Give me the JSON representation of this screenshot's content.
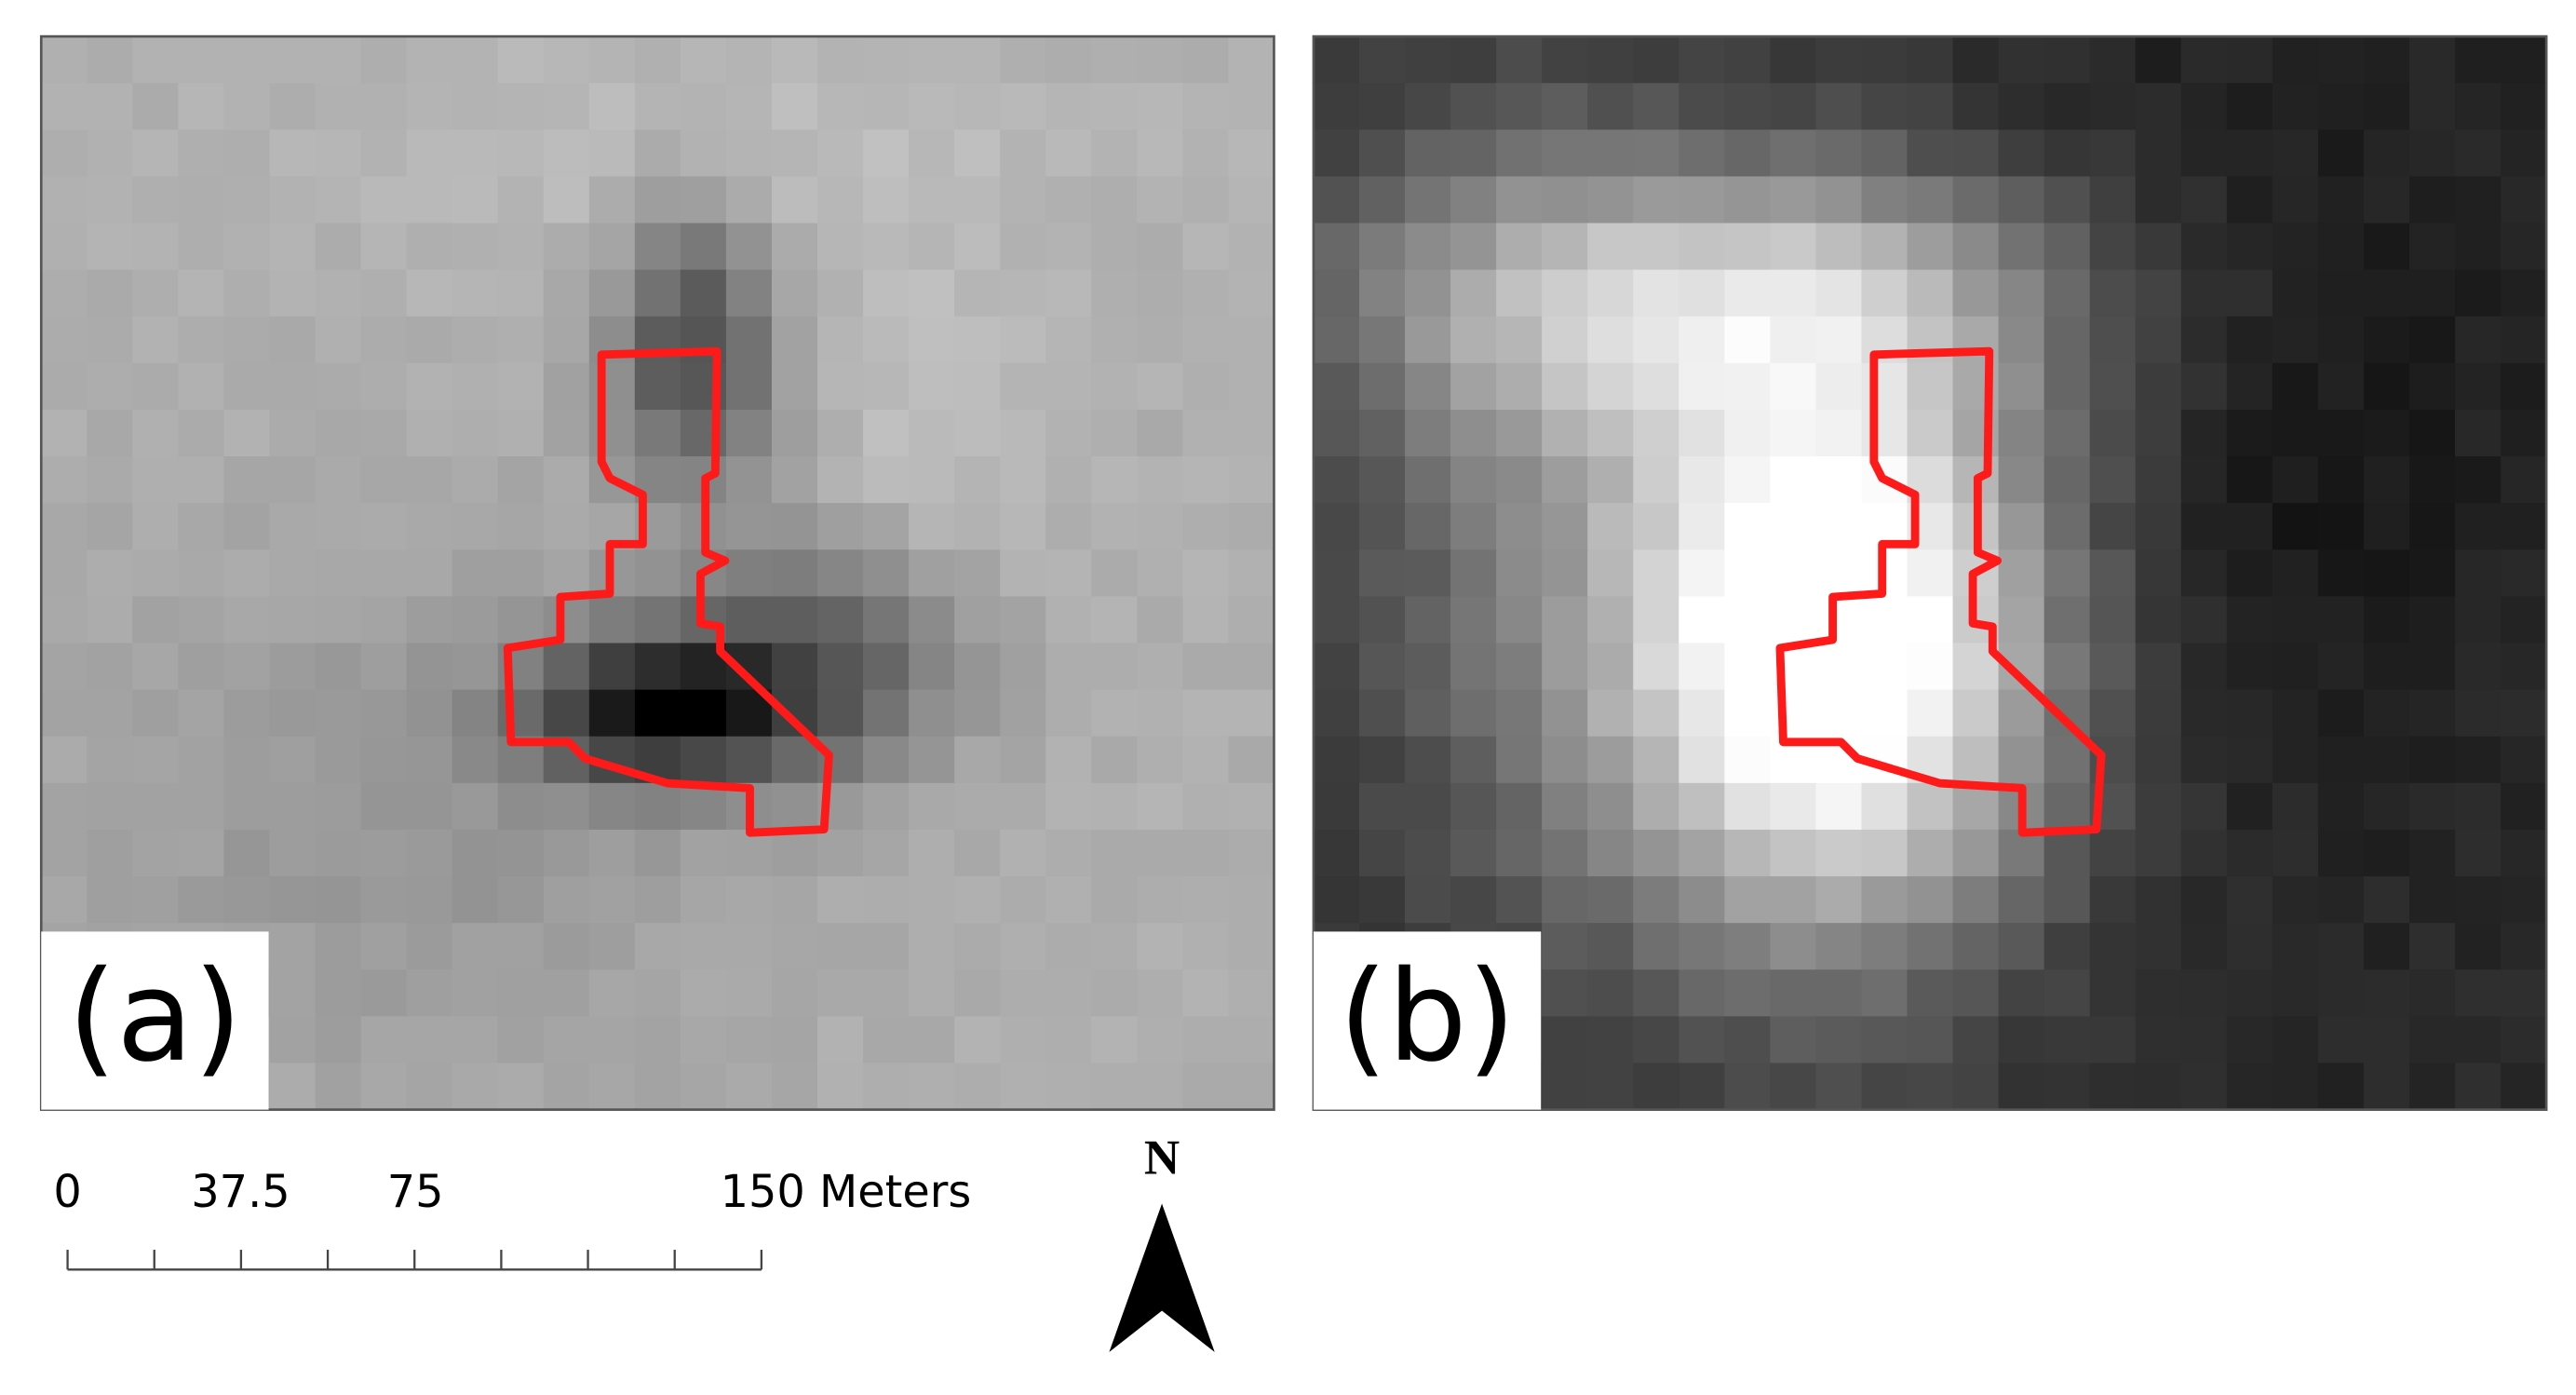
{
  "panels": [
    {
      "label": "(a)"
    },
    {
      "label": "(b)"
    }
  ],
  "scale_bar": {
    "labels": [
      "0",
      "37.5",
      "75",
      "150 Meters"
    ]
  },
  "north_arrow": {
    "label": "N"
  }
}
